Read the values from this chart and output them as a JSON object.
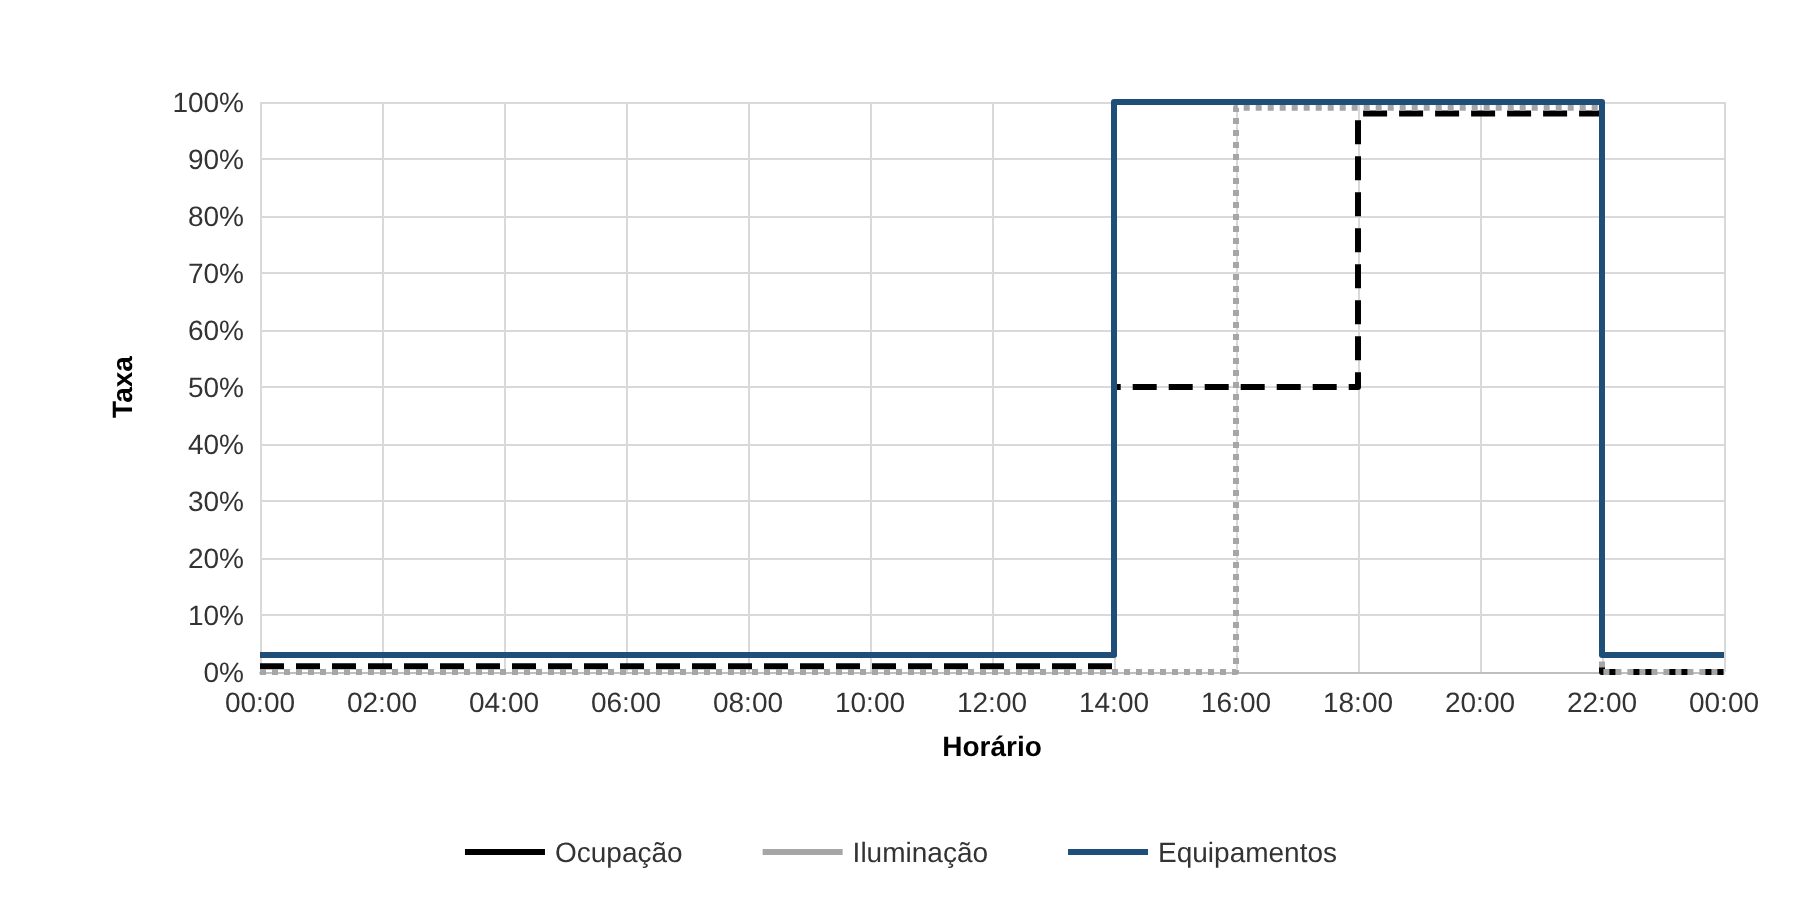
{
  "chart_data": {
    "type": "step",
    "xlabel": "Horário",
    "ylabel": "Taxa",
    "xlim": [
      0,
      24
    ],
    "xticks": [
      {
        "value": 0,
        "label": "00:00"
      },
      {
        "value": 2,
        "label": "02:00"
      },
      {
        "value": 4,
        "label": "04:00"
      },
      {
        "value": 6,
        "label": "06:00"
      },
      {
        "value": 8,
        "label": "08:00"
      },
      {
        "value": 10,
        "label": "10:00"
      },
      {
        "value": 12,
        "label": "12:00"
      },
      {
        "value": 14,
        "label": "14:00"
      },
      {
        "value": 16,
        "label": "16:00"
      },
      {
        "value": 18,
        "label": "18:00"
      },
      {
        "value": 20,
        "label": "20:00"
      },
      {
        "value": 22,
        "label": "22:00"
      },
      {
        "value": 24,
        "label": "00:00"
      }
    ],
    "ylim": [
      0,
      100
    ],
    "yticks": [
      {
        "value": 0,
        "label": "0%"
      },
      {
        "value": 10,
        "label": "10%"
      },
      {
        "value": 20,
        "label": "20%"
      },
      {
        "value": 30,
        "label": "30%"
      },
      {
        "value": 40,
        "label": "40%"
      },
      {
        "value": 50,
        "label": "50%"
      },
      {
        "value": 60,
        "label": "60%"
      },
      {
        "value": 70,
        "label": "70%"
      },
      {
        "value": 80,
        "label": "80%"
      },
      {
        "value": 90,
        "label": "90%"
      },
      {
        "value": 100,
        "label": "100%"
      }
    ],
    "grid": true,
    "legend": "bottom",
    "marker": "none",
    "series": [
      {
        "name": "Ocupação",
        "color": "#000000",
        "line_style": "dashed",
        "x": [
          0,
          14,
          18,
          22,
          24
        ],
        "values": [
          1,
          50,
          98,
          0,
          0
        ]
      },
      {
        "name": "Iluminação",
        "color": "#a6a6a6",
        "line_style": "dotted",
        "x": [
          0,
          16,
          22,
          24
        ],
        "values": [
          0,
          99,
          0,
          0
        ]
      },
      {
        "name": "Equipamentos",
        "color": "#1f4e79",
        "line_style": "solid",
        "x": [
          0,
          14,
          22,
          24
        ],
        "values": [
          3,
          100,
          3,
          3
        ]
      }
    ]
  }
}
